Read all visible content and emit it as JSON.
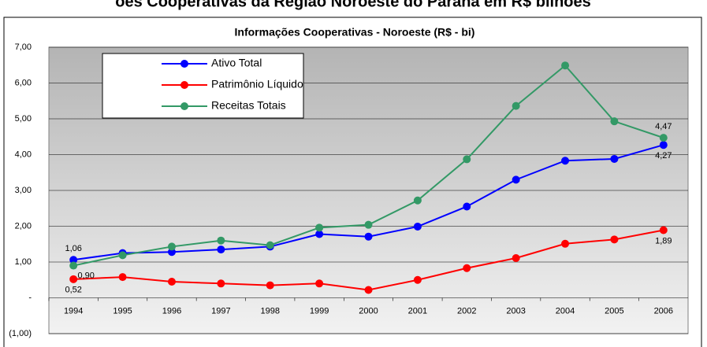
{
  "header": "ões Cooperativas da Região Noroeste do Paraná em R$ bilhões",
  "chart_data": {
    "type": "line",
    "title": "Informações Cooperativas - Noroeste (R$ - bi)",
    "categories": [
      "1994",
      "1995",
      "1996",
      "1997",
      "1998",
      "1999",
      "2000",
      "2001",
      "2002",
      "2003",
      "2004",
      "2005",
      "2006"
    ],
    "series": [
      {
        "name": "Ativo Total",
        "color": "#0000ff",
        "values": [
          1.06,
          1.25,
          1.28,
          1.35,
          1.43,
          1.78,
          1.71,
          1.99,
          2.55,
          3.3,
          3.83,
          3.88,
          4.27
        ],
        "value_labels": [
          "1,06",
          null,
          null,
          null,
          null,
          null,
          null,
          null,
          null,
          null,
          null,
          null,
          "4,27"
        ]
      },
      {
        "name": "Patrimônio Líquido",
        "color": "#ff0000",
        "values": [
          0.52,
          0.58,
          0.45,
          0.4,
          0.35,
          0.4,
          0.22,
          0.5,
          0.83,
          1.11,
          1.51,
          1.63,
          1.89
        ],
        "value_labels": [
          "0,52",
          null,
          null,
          null,
          null,
          null,
          null,
          null,
          null,
          null,
          null,
          null,
          "1,89"
        ]
      },
      {
        "name": "Receitas Totais",
        "color": "#339966",
        "values": [
          0.9,
          1.19,
          1.43,
          1.6,
          1.47,
          1.96,
          2.04,
          2.72,
          3.87,
          5.36,
          6.49,
          4.93,
          4.47
        ],
        "value_labels": [
          "0,90",
          null,
          null,
          null,
          null,
          null,
          null,
          null,
          null,
          null,
          null,
          null,
          "4,47"
        ]
      }
    ],
    "ylim": [
      -1,
      7
    ],
    "yticks": [
      {
        "value": -1,
        "label": "(1,00)"
      },
      {
        "value": 0,
        "label": "-"
      },
      {
        "value": 1,
        "label": "1,00"
      },
      {
        "value": 2,
        "label": "2,00"
      },
      {
        "value": 3,
        "label": "3,00"
      },
      {
        "value": 4,
        "label": "4,00"
      },
      {
        "value": 5,
        "label": "5,00"
      },
      {
        "value": 6,
        "label": "6,00"
      },
      {
        "value": 7,
        "label": "7,00"
      }
    ],
    "grid": true,
    "legend": "upper left"
  }
}
